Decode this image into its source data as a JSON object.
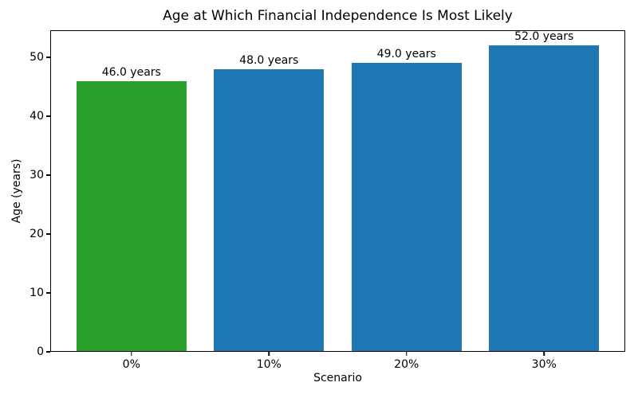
{
  "chart_data": {
    "type": "bar",
    "title": "Age at Which Financial Independence Is Most Likely",
    "xlabel": "Scenario",
    "ylabel": "Age (years)",
    "categories": [
      "0%",
      "10%",
      "20%",
      "30%"
    ],
    "values": [
      46.0,
      48.0,
      49.0,
      52.0
    ],
    "bar_labels": [
      "46.0 years",
      "48.0 years",
      "49.0 years",
      "52.0 years"
    ],
    "bar_colors": [
      "#2ca02c",
      "#1f77b4",
      "#1f77b4",
      "#1f77b4"
    ],
    "ylim": [
      0,
      54.6
    ],
    "yticks": [
      0,
      10,
      20,
      30,
      40,
      50
    ],
    "grid": false,
    "legend": null,
    "colors": {
      "bar_default": "#1f77b4",
      "bar_highlight": "#2ca02c",
      "frame": "#000000",
      "text": "#000000",
      "background": "#ffffff"
    }
  }
}
